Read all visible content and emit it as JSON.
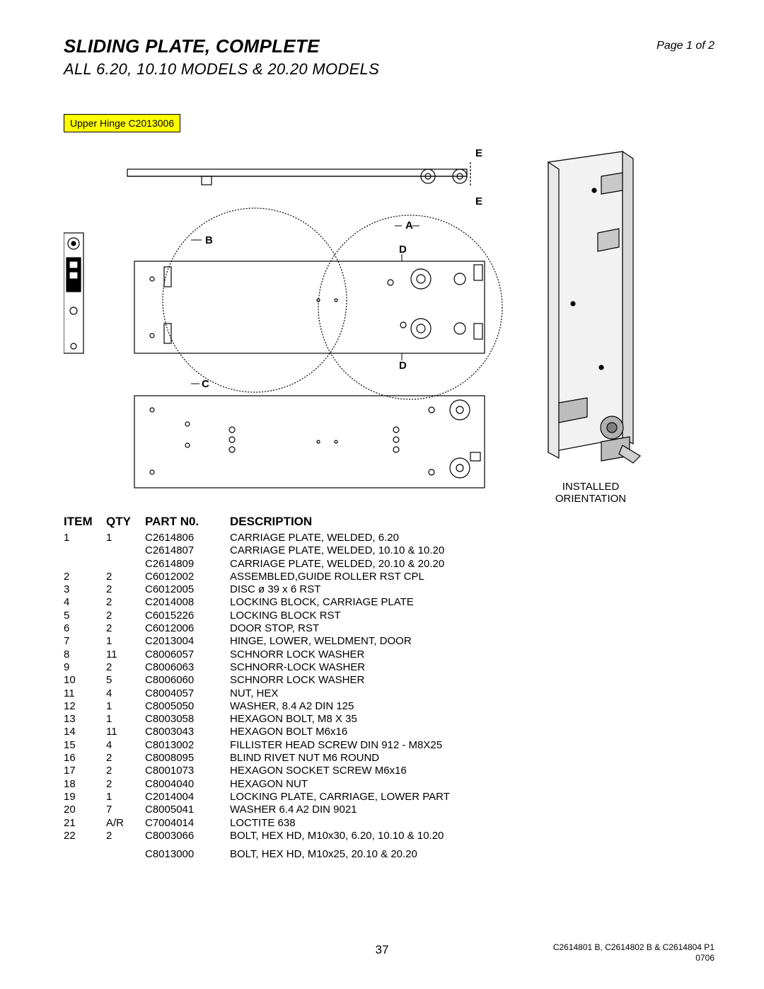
{
  "header": {
    "title": "SLIDING PLATE, COMPLETE",
    "subtitle": "ALL 6.20, 10.10 MODELS & 20.20 MODELS",
    "page_indicator": "Page 1 of 2"
  },
  "callout": {
    "label": "Upper Hinge C2013006",
    "bg": "#ffff00",
    "border": "#000000"
  },
  "diagram": {
    "labels": [
      "E",
      "E",
      "A",
      "B",
      "D",
      "D",
      "C"
    ],
    "orientation_line1": "INSTALLED",
    "orientation_line2": "ORIENTATION",
    "stroke": "#000000",
    "fill_light": "#f5f5f5"
  },
  "table": {
    "headers": {
      "item": "ITEM",
      "qty": "QTY",
      "part": "PART N0.",
      "desc": "DESCRIPTION"
    },
    "rows": [
      {
        "item": "1",
        "qty": "1",
        "part": "C2614806",
        "desc": "CARRIAGE PLATE, WELDED, 6.20"
      },
      {
        "item": "",
        "qty": "",
        "part": "C2614807",
        "desc": "CARRIAGE PLATE, WELDED, 10.10 & 10.20"
      },
      {
        "item": "",
        "qty": "",
        "part": "C2614809",
        "desc": "CARRIAGE PLATE, WELDED, 20.10 & 20.20"
      },
      {
        "item": "2",
        "qty": "2",
        "part": "C6012002",
        "desc": "ASSEMBLED,GUIDE ROLLER RST CPL"
      },
      {
        "item": "3",
        "qty": "2",
        "part": "C6012005",
        "desc": "DISC ø 39 x 6 RST"
      },
      {
        "item": "4",
        "qty": "2",
        "part": "C2014008",
        "desc": "LOCKING BLOCK, CARRIAGE PLATE"
      },
      {
        "item": "5",
        "qty": "2",
        "part": "C6015226",
        "desc": "LOCKING BLOCK RST"
      },
      {
        "item": "6",
        "qty": "2",
        "part": "C6012006",
        "desc": "DOOR STOP, RST"
      },
      {
        "item": "7",
        "qty": "1",
        "part": "C2013004",
        "desc": "HINGE, LOWER, WELDMENT, DOOR"
      },
      {
        "item": "8",
        "qty": "11",
        "part": "C8006057",
        "desc": "SCHNORR LOCK WASHER"
      },
      {
        "item": "9",
        "qty": "2",
        "part": "C8006063",
        "desc": "SCHNORR-LOCK WASHER"
      },
      {
        "item": "10",
        "qty": "5",
        "part": "C8006060",
        "desc": "SCHNORR LOCK WASHER"
      },
      {
        "item": "11",
        "qty": "4",
        "part": "C8004057",
        "desc": "NUT, HEX"
      },
      {
        "item": "12",
        "qty": "1",
        "part": "C8005050",
        "desc": "WASHER, 8.4 A2 DIN 125"
      },
      {
        "item": "13",
        "qty": "1",
        "part": "C8003058",
        "desc": "HEXAGON BOLT, M8 X 35"
      },
      {
        "item": "14",
        "qty": "11",
        "part": "C8003043",
        "desc": "HEXAGON BOLT M6x16"
      },
      {
        "item": "15",
        "qty": "4",
        "part": "C8013002",
        "desc": "FILLISTER HEAD SCREW DIN 912 - M8X25"
      },
      {
        "item": "16",
        "qty": "2",
        "part": "C8008095",
        "desc": "BLIND RIVET NUT M6 ROUND"
      },
      {
        "item": "17",
        "qty": "2",
        "part": "C8001073",
        "desc": "HEXAGON SOCKET SCREW M6x16"
      },
      {
        "item": "18",
        "qty": "2",
        "part": "C8004040",
        "desc": "HEXAGON NUT"
      },
      {
        "item": "19",
        "qty": "1",
        "part": "C2014004",
        "desc": "LOCKING PLATE, CARRIAGE, LOWER PART"
      },
      {
        "item": "20",
        "qty": "7",
        "part": "C8005041",
        "desc": "WASHER 6.4 A2 DIN 9021"
      },
      {
        "item": "21",
        "qty": "A/R",
        "part": "C7004014",
        "desc": "LOCTITE 638"
      },
      {
        "item": "22",
        "qty": "2",
        "part": "C8003066",
        "desc": "BOLT, HEX HD, M10x30, 6.20, 10.10 & 10.20"
      },
      {
        "item": "",
        "qty": "",
        "part": "C8013000",
        "desc": "BOLT, HEX HD, M10x25, 20.10 & 20.20"
      }
    ],
    "col_widths": {
      "item": 60,
      "qty": 55,
      "part": 120
    },
    "font_size": 15,
    "header_font_size": 17
  },
  "page_number": "37",
  "footer": {
    "line1": "C2614801 B, C2614802 B & C2614804 P1",
    "line2": "0706"
  }
}
